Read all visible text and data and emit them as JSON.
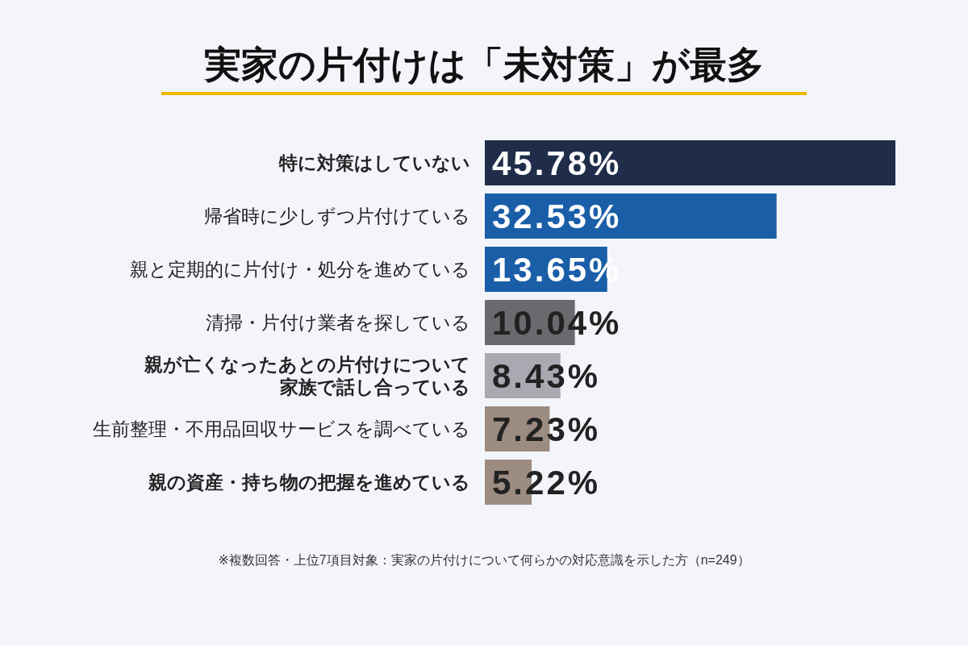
{
  "chart_data": {
    "type": "bar",
    "orientation": "horizontal",
    "title": "実家の片付けは「未対策」が最多",
    "categories": [
      "特に対策はしていない",
      "帰省時に少しずつ片付けている",
      "親と定期的に片付け・処分を進めている",
      "清掃・片付け業者を探している",
      "親が亡くなったあとの片付けについて家族で話し合っている",
      "生前整理・不用品回収サービスを調べている",
      "親の資産・持ち物の把握を進めている"
    ],
    "values": [
      45.78,
      32.53,
      13.65,
      10.04,
      8.43,
      7.23,
      5.22
    ],
    "value_labels": [
      "45.78%",
      "32.53%",
      "13.65%",
      "10.04%",
      "8.43%",
      "7.23%",
      "5.22%"
    ],
    "colors": [
      "#1f2d4a",
      "#1a5ea8",
      "#1a5ea8",
      "#6a6a6e",
      "#a9a9b2",
      "#9c8b80",
      "#9c8b80"
    ],
    "annotations": [
      "※複数回答・上位7項目対象：実家の片付けについて何らかの対応意識を示した方（n=249）"
    ]
  }
}
